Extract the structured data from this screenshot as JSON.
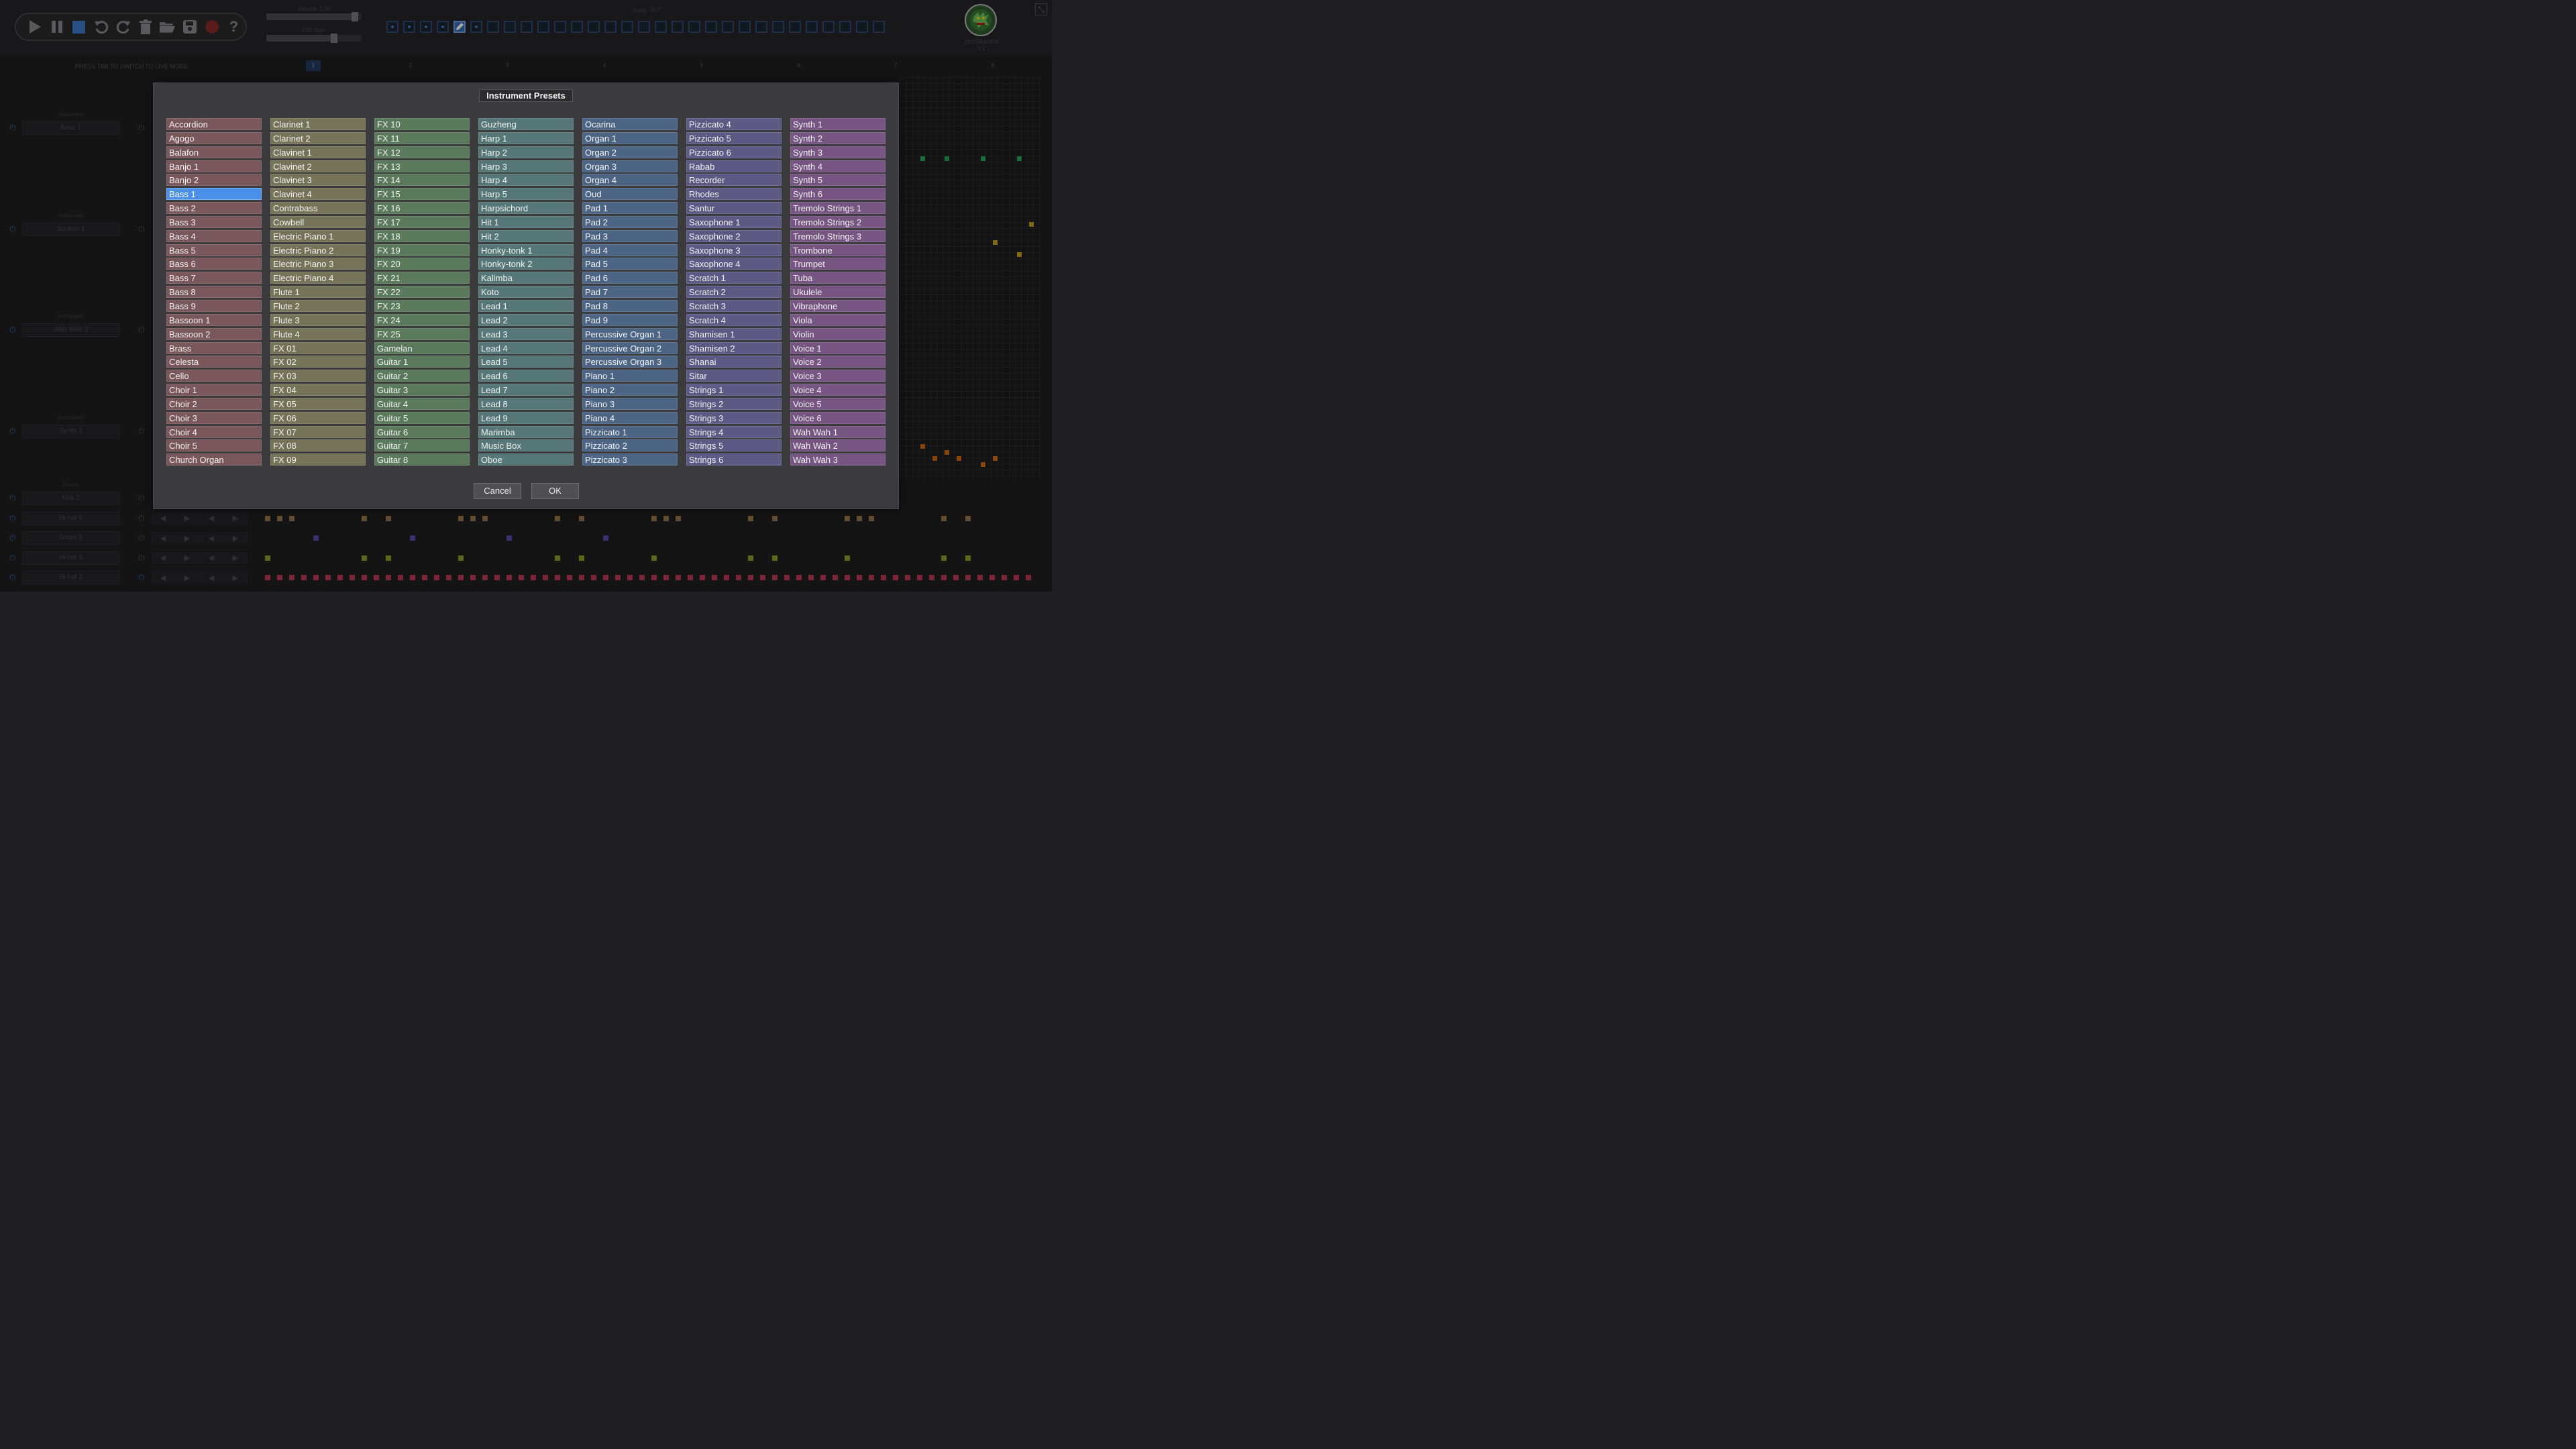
{
  "top": {
    "volume_label": "Volume 1.00",
    "volume_fraction": 0.96,
    "tempo_label": "230 bpm",
    "tempo_fraction": 0.73,
    "song_label": "Song \"007\"",
    "logo_name": "1BITDRAGON",
    "logo_version": "1.1",
    "pattern_cells": [
      "filled",
      "filled",
      "filled",
      "filled",
      "edit",
      "filled",
      "empty",
      "empty",
      "empty",
      "empty",
      "empty",
      "empty",
      "empty",
      "empty",
      "empty",
      "empty",
      "empty",
      "empty",
      "empty",
      "empty",
      "empty",
      "empty",
      "empty",
      "empty",
      "empty",
      "empty",
      "empty",
      "empty",
      "empty",
      "empty"
    ]
  },
  "transport": {
    "icons": [
      "play-icon",
      "pause-icon",
      "stop-icon",
      "undo-icon",
      "redo-icon",
      "trash-icon",
      "open-folder-icon",
      "save-icon",
      "record-icon",
      "help-icon"
    ]
  },
  "tab_hint": "PRESS TAB TO SWITCH TO LIVE MODE",
  "bar_markers": [
    "1",
    "2",
    "3",
    "4",
    "5",
    "6",
    "7",
    "8"
  ],
  "tracks": [
    {
      "kind": "Instrument",
      "name": "Bass 1"
    },
    {
      "kind": "Instrument",
      "name": "Scratch 1"
    },
    {
      "kind": "Instrument",
      "name": "Wah Wah 3"
    },
    {
      "kind": "Instrument",
      "name": "Synth 2"
    }
  ],
  "drums_label": "Drums",
  "drums": [
    "Kick 2",
    "Hi-hat 6",
    "Snare 5",
    "Hi-hat 5",
    "Hi-hat 2"
  ],
  "dialog": {
    "title": "Instrument Presets",
    "selected": "Bass 1",
    "cancel_label": "Cancel",
    "ok_label": "OK",
    "column_colors": [
      "#79575a",
      "#767458",
      "#5b7a5b",
      "#557777",
      "#4d6585",
      "#5c5a84",
      "#775582"
    ],
    "columns": [
      [
        "Accordion",
        "Agogo",
        "Balafon",
        "Banjo 1",
        "Banjo 2",
        "Bass 1",
        "Bass 2",
        "Bass 3",
        "Bass 4",
        "Bass 5",
        "Bass 6",
        "Bass 7",
        "Bass 8",
        "Bass 9",
        "Bassoon 1",
        "Bassoon 2",
        "Brass",
        "Celesta",
        "Cello",
        "Choir 1",
        "Choir 2",
        "Choir 3",
        "Choir 4",
        "Choir 5",
        "Church Organ"
      ],
      [
        "Clarinet 1",
        "Clarinet 2",
        "Clavinet 1",
        "Clavinet 2",
        "Clavinet 3",
        "Clavinet 4",
        "Contrabass",
        "Cowbell",
        "Electric Piano 1",
        "Electric Piano 2",
        "Electric Piano 3",
        "Electric Piano 4",
        "Flute 1",
        "Flute 2",
        "Flute 3",
        "Flute 4",
        "FX 01",
        "FX 02",
        "FX 03",
        "FX 04",
        "FX 05",
        "FX 06",
        "FX 07",
        "FX 08",
        "FX 09"
      ],
      [
        "FX 10",
        "FX 11",
        "FX 12",
        "FX 13",
        "FX 14",
        "FX 15",
        "FX 16",
        "FX 17",
        "FX 18",
        "FX 19",
        "FX 20",
        "FX 21",
        "FX 22",
        "FX 23",
        "FX 24",
        "FX 25",
        "Gamelan",
        "Guitar 1",
        "Guitar 2",
        "Guitar 3",
        "Guitar 4",
        "Guitar 5",
        "Guitar 6",
        "Guitar 7",
        "Guitar 8"
      ],
      [
        "Guzheng",
        "Harp 1",
        "Harp 2",
        "Harp 3",
        "Harp 4",
        "Harp 5",
        "Harpsichord",
        "Hit 1",
        "Hit 2",
        "Honky-tonk 1",
        "Honky-tonk 2",
        "Kalimba",
        "Koto",
        "Lead 1",
        "Lead 2",
        "Lead 3",
        "Lead 4",
        "Lead 5",
        "Lead 6",
        "Lead 7",
        "Lead 8",
        "Lead 9",
        "Marimba",
        "Music Box",
        "Oboe"
      ],
      [
        "Ocarina",
        "Organ 1",
        "Organ 2",
        "Organ 3",
        "Organ 4",
        "Oud",
        "Pad 1",
        "Pad 2",
        "Pad 3",
        "Pad 4",
        "Pad 5",
        "Pad 6",
        "Pad 7",
        "Pad 8",
        "Pad 9",
        "Percussive Organ 1",
        "Percussive Organ 2",
        "Percussive Organ 3",
        "Piano 1",
        "Piano 2",
        "Piano 3",
        "Piano 4",
        "Pizzicato 1",
        "Pizzicato 2",
        "Pizzicato 3"
      ],
      [
        "Pizzicato 4",
        "Pizzicato 5",
        "Pizzicato 6",
        "Rabab",
        "Recorder",
        "Rhodes",
        "Santur",
        "Saxophone 1",
        "Saxophone 2",
        "Saxophone 3",
        "Saxophone 4",
        "Scratch 1",
        "Scratch 2",
        "Scratch 3",
        "Scratch 4",
        "Shamisen 1",
        "Shamisen 2",
        "Shanai",
        "Sitar",
        "Strings 1",
        "Strings 2",
        "Strings 3",
        "Strings 4",
        "Strings 5",
        "Strings 6"
      ],
      [
        "Synth 1",
        "Synth 2",
        "Synth 3",
        "Synth 4",
        "Synth 5",
        "Synth 6",
        "Tremolo Strings 1",
        "Tremolo Strings 2",
        "Tremolo Strings 3",
        "Trombone",
        "Trumpet",
        "Tuba",
        "Ukulele",
        "Vibraphone",
        "Viola",
        "Violin",
        "Voice 1",
        "Voice 2",
        "Voice 3",
        "Voice 4",
        "Voice 5",
        "Voice 6",
        "Wah Wah 1",
        "Wah Wah 2",
        "Wah Wah 3"
      ]
    ]
  },
  "colors": {
    "accent": "#4a90e8",
    "note_green": "#27a85a",
    "note_yellow": "#c9a21a",
    "note_orange": "#d06a12",
    "drum_hihat6": "#9a7a4a",
    "drum_snare": "#5a4aa8",
    "drum_hihat5": "#8a9a2a",
    "drum_hihat2": "#c43a5a"
  }
}
